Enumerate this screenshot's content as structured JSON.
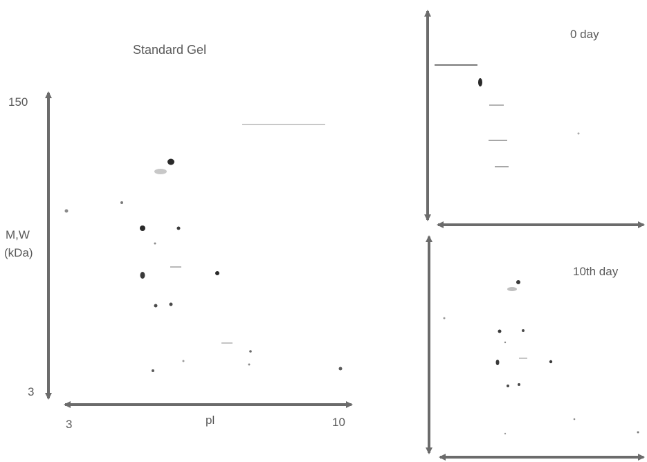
{
  "standard_gel": {
    "title": "Standard Gel",
    "y_axis": {
      "label_line1": "M,W",
      "label_line2": "(kDa)",
      "max": "150",
      "min": "3"
    },
    "x_axis": {
      "label": "pl",
      "min": "3",
      "max": "10"
    }
  },
  "panel_0_day": {
    "title": "0 day"
  },
  "panel_10th_day": {
    "title": "10th day"
  },
  "colors": {
    "arrow": "#6b6b6b",
    "spot": "#2a2a2a",
    "faint": "#9a9a9a"
  }
}
